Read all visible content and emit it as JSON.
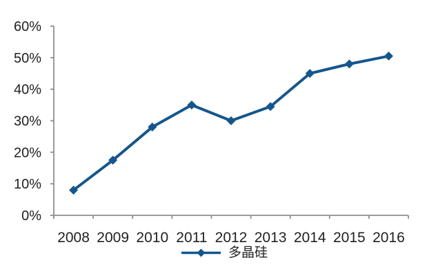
{
  "chart_data": {
    "type": "line",
    "title": "",
    "categories": [
      "2008",
      "2009",
      "2010",
      "2011",
      "2012",
      "2013",
      "2014",
      "2015",
      "2016"
    ],
    "series": [
      {
        "name": "多晶硅",
        "values": [
          8,
          17.5,
          28,
          35,
          30,
          34.5,
          45,
          48,
          50.5
        ],
        "color": "#15568c",
        "marker": "diamond"
      }
    ],
    "xlabel": "",
    "ylabel": "",
    "ylim": [
      0,
      60
    ],
    "ytick_step": 10,
    "ytick_labels": [
      "0%",
      "10%",
      "20%",
      "30%",
      "40%",
      "50%",
      "60%"
    ],
    "grid": false,
    "legend_position": "bottom-center",
    "colors": {
      "line": "#15568c",
      "axis": "#8e8e8e",
      "tick_text": "#212121",
      "background": "#ffffff"
    }
  }
}
